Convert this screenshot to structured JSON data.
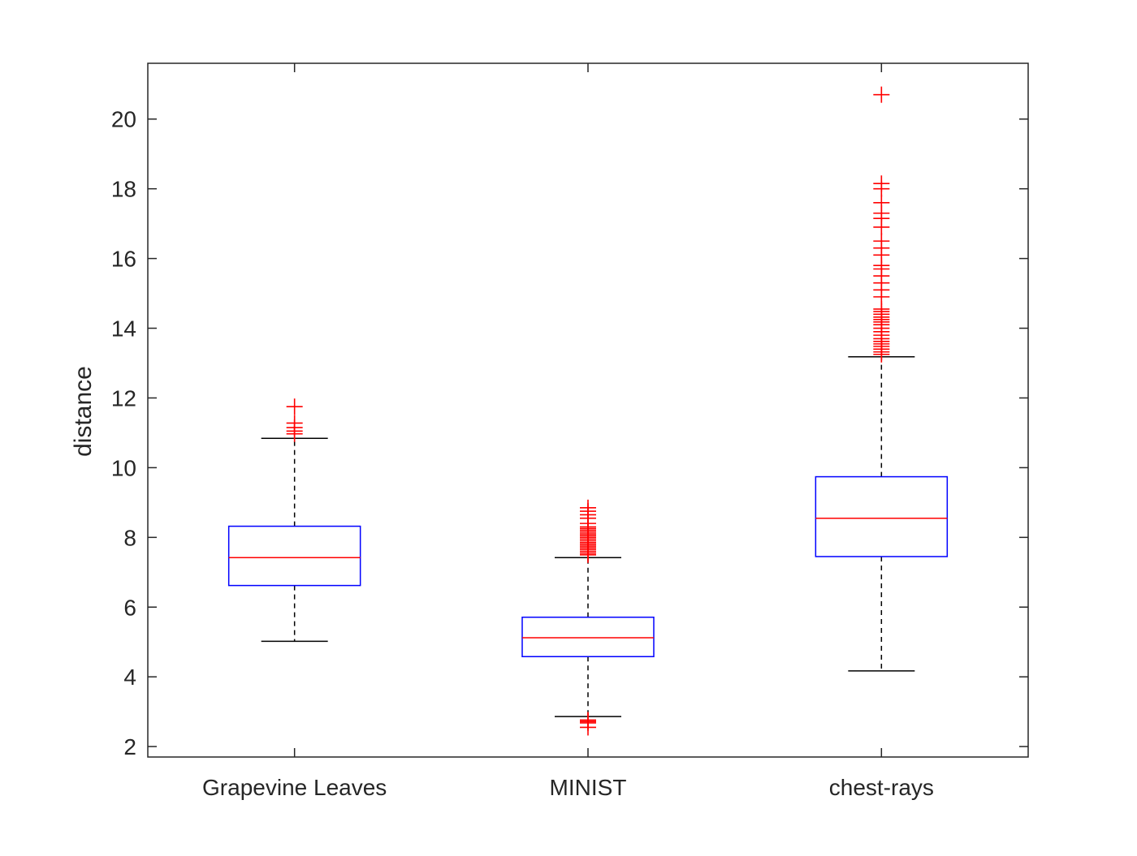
{
  "chart_data": {
    "type": "box",
    "title": "",
    "xlabel": "",
    "ylabel": "distance",
    "ylim": [
      1.7,
      21.6
    ],
    "yticks": [
      2,
      4,
      6,
      8,
      10,
      12,
      14,
      16,
      18,
      20
    ],
    "grid": false,
    "categories": [
      "Grapevine Leaves",
      "MINIST",
      "chest-rays"
    ],
    "series": [
      {
        "category": "Grapevine Leaves",
        "whisker_low": 5.02,
        "q1": 6.62,
        "median": 7.42,
        "q3": 8.32,
        "whisker_high": 10.84,
        "outliers": [
          10.97,
          11.05,
          11.15,
          11.28,
          11.75
        ]
      },
      {
        "category": "MINIST",
        "whisker_low": 2.86,
        "q1": 4.58,
        "median": 5.12,
        "q3": 5.71,
        "whisker_high": 7.42,
        "outliers": [
          2.55,
          2.68,
          2.72,
          2.76,
          7.5,
          7.55,
          7.6,
          7.65,
          7.7,
          7.75,
          7.8,
          7.85,
          7.9,
          7.95,
          8.0,
          8.05,
          8.1,
          8.15,
          8.2,
          8.25,
          8.3,
          8.4,
          8.55,
          8.65,
          8.75,
          8.85
        ]
      },
      {
        "category": "chest-rays",
        "whisker_low": 4.17,
        "q1": 7.45,
        "median": 8.55,
        "q3": 9.74,
        "whisker_high": 13.18,
        "outliers": [
          13.25,
          13.32,
          13.4,
          13.48,
          13.55,
          13.62,
          13.7,
          13.8,
          13.9,
          14.0,
          14.1,
          14.18,
          14.25,
          14.32,
          14.4,
          14.48,
          14.55,
          14.9,
          15.1,
          15.3,
          15.5,
          15.7,
          15.8,
          16.1,
          16.3,
          16.5,
          16.9,
          17.15,
          17.3,
          17.6,
          18.0,
          18.15,
          20.7
        ]
      }
    ],
    "colors": {
      "box": "#0000ff",
      "median": "#ff0000",
      "outlier": "#ff0000",
      "whisker": "#000000",
      "axis": "#262626"
    }
  }
}
